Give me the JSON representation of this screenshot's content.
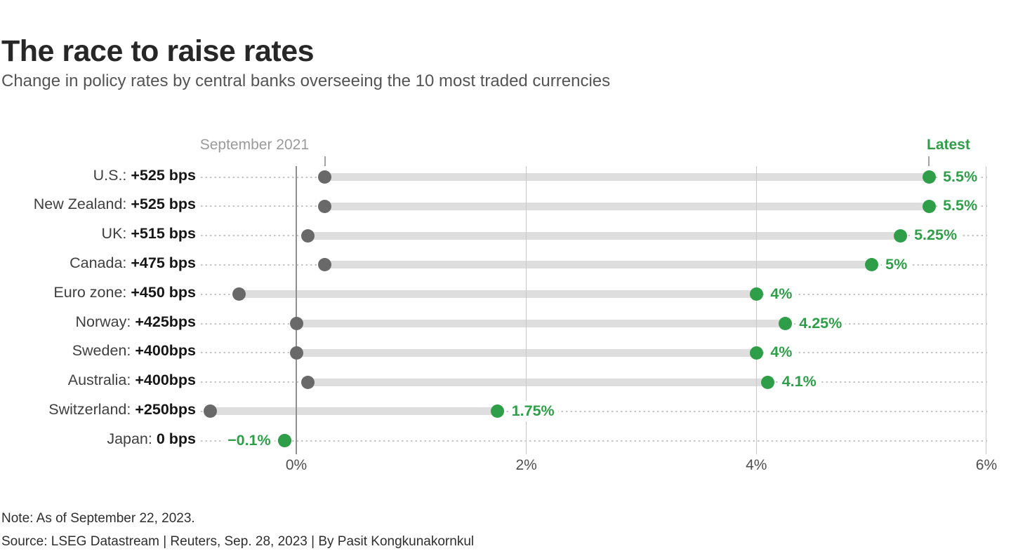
{
  "header": {
    "title": "The race to raise rates",
    "subtitle": "Change in policy rates by central banks overseeing the 10 most traded currencies"
  },
  "chart": {
    "legend": {
      "start_label": "September 2021",
      "end_label": "Latest"
    },
    "x_axis": {
      "ticks": [
        {
          "value": 0,
          "label": "0%"
        },
        {
          "value": 2,
          "label": "2%"
        },
        {
          "value": 4,
          "label": "4%"
        },
        {
          "value": 6,
          "label": "6%"
        }
      ]
    },
    "rows": [
      {
        "label": "U.S.:",
        "change": "+525 bps",
        "start": 0.25,
        "end": 5.5,
        "end_label": "5.5%",
        "label_side": "right"
      },
      {
        "label": "New Zealand:",
        "change": "+525 bps",
        "start": 0.25,
        "end": 5.5,
        "end_label": "5.5%",
        "label_side": "right"
      },
      {
        "label": "UK:",
        "change": "+515 bps",
        "start": 0.1,
        "end": 5.25,
        "end_label": "5.25%",
        "label_side": "right"
      },
      {
        "label": "Canada:",
        "change": "+475 bps",
        "start": 0.25,
        "end": 5.0,
        "end_label": "5%",
        "label_side": "right"
      },
      {
        "label": "Euro zone:",
        "change": "+450 bps",
        "start": -0.5,
        "end": 4.0,
        "end_label": "4%",
        "label_side": "right"
      },
      {
        "label": "Norway:",
        "change": "+425bps",
        "start": 0.0,
        "end": 4.25,
        "end_label": "4.25%",
        "label_side": "right"
      },
      {
        "label": "Sweden:",
        "change": "+400bps",
        "start": 0.0,
        "end": 4.0,
        "end_label": "4%",
        "label_side": "right"
      },
      {
        "label": "Australia:",
        "change": "+400bps",
        "start": 0.1,
        "end": 4.1,
        "end_label": "4.1%",
        "label_side": "right"
      },
      {
        "label": "Switzerland:",
        "change": "+250bps",
        "start": -0.75,
        "end": 1.75,
        "end_label": "1.75%",
        "label_side": "right"
      },
      {
        "label": "Japan:",
        "change": "0 bps",
        "start": -0.1,
        "end": -0.1,
        "end_label": "−0.1%",
        "label_side": "left"
      }
    ]
  },
  "chart_data": {
    "type": "scatter",
    "variant": "dumbbell",
    "title": "The race to raise rates",
    "subtitle": "Change in policy rates by central banks overseeing the 10 most traded currencies",
    "categories": [
      "U.S.",
      "New Zealand",
      "UK",
      "Canada",
      "Euro zone",
      "Norway",
      "Sweden",
      "Australia",
      "Switzerland",
      "Japan"
    ],
    "series": [
      {
        "name": "September 2021",
        "values": [
          0.25,
          0.25,
          0.1,
          0.25,
          -0.5,
          0.0,
          0.0,
          0.1,
          -0.75,
          -0.1
        ]
      },
      {
        "name": "Latest",
        "values": [
          5.5,
          5.5,
          5.25,
          5.0,
          4.0,
          4.25,
          4.0,
          4.1,
          1.75,
          -0.1
        ]
      }
    ],
    "change_bps_labels": [
      "+525 bps",
      "+525 bps",
      "+515 bps",
      "+475 bps",
      "+450 bps",
      "+425bps",
      "+400bps",
      "+400bps",
      "+250bps",
      "0 bps"
    ],
    "latest_value_labels": [
      "5.5%",
      "5.5%",
      "5.25%",
      "5%",
      "4%",
      "4.25%",
      "4%",
      "4.1%",
      "1.75%",
      "−0.1%"
    ],
    "xlabel": "",
    "ylabel": "",
    "x_ticks": [
      "0%",
      "2%",
      "4%",
      "6%"
    ],
    "xlim": [
      -0.9,
      6.05
    ],
    "grid": "vertical",
    "legend_position": "top"
  },
  "colors": {
    "latest_green": "#2f9e49",
    "sep2021_gray": "#696969",
    "range_bar": "#dedede",
    "gridline": "#c9c9c9",
    "zero_gridline": "#8f8f8f",
    "title_text": "#272727",
    "subtitle_text": "#545454",
    "annotation_gray": "#9a9a9a"
  },
  "footer": {
    "note": "Note: As of September 22, 2023.",
    "source": "Source: LSEG Datastream | Reuters, Sep. 28, 2023 | By Pasit Kongkunakornkul"
  }
}
